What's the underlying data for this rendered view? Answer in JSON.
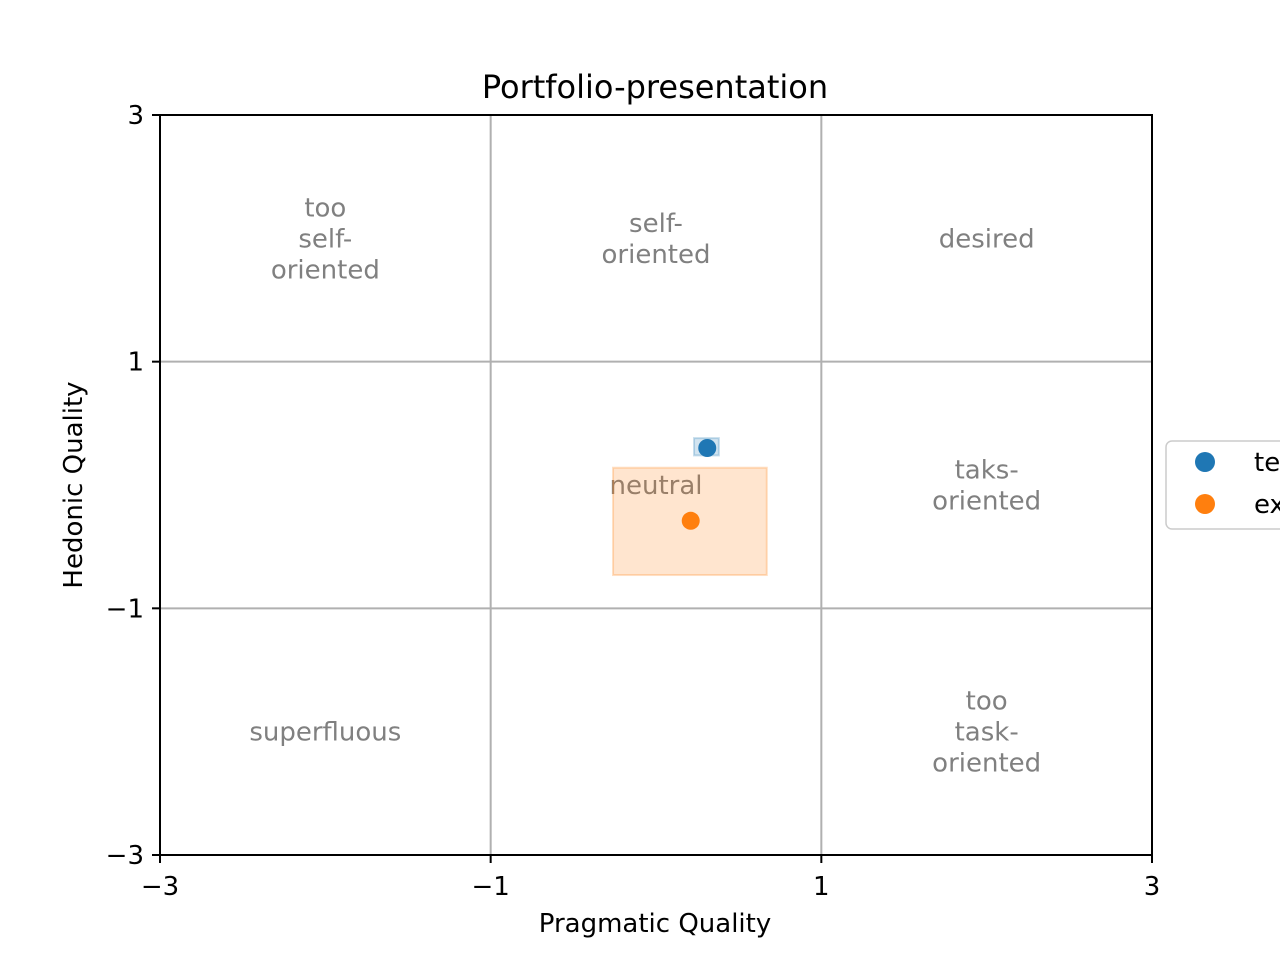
{
  "chart_data": {
    "type": "scatter",
    "title": "Portfolio-presentation",
    "xlabel": "Pragmatic Quality",
    "ylabel": "Hedonic Quality",
    "xlim": [
      -3,
      3
    ],
    "ylim": [
      -3,
      3
    ],
    "xticks": [
      -3,
      -1,
      1,
      3
    ],
    "yticks": [
      -3,
      -1,
      1,
      3
    ],
    "xtick_labels": [
      "−3",
      "−1",
      "1",
      "3"
    ],
    "ytick_labels": [
      "−3",
      "−1",
      "1",
      "3"
    ],
    "grid": true,
    "legend_position": "right (outside, cut off)",
    "regions": [
      {
        "lines": [
          "too",
          "self-",
          "oriented"
        ],
        "x": -2,
        "y": 2
      },
      {
        "lines": [
          "self-",
          "oriented"
        ],
        "x": 0,
        "y": 2
      },
      {
        "lines": [
          "desired"
        ],
        "x": 2,
        "y": 2
      },
      {
        "lines": [
          "neutral"
        ],
        "x": 0,
        "y": 0
      },
      {
        "lines": [
          "taks-",
          "oriented"
        ],
        "x": 2,
        "y": 0
      },
      {
        "lines": [
          "superfluous"
        ],
        "x": -2,
        "y": -2
      },
      {
        "lines": [
          "too",
          "task-",
          "oriented"
        ],
        "x": 2,
        "y": -2
      }
    ],
    "series": [
      {
        "name": "te",
        "color": "#1f77b4",
        "x": [
          0.31
        ],
        "y": 0.3,
        "y_values": [
          0.3
        ],
        "conf_x": [
          0.23,
          0.38
        ],
        "conf_y": [
          0.24,
          0.38
        ]
      },
      {
        "name": "ex",
        "color": "#ff7f0e",
        "x": [
          0.21
        ],
        "y_values": [
          -0.29
        ],
        "conf_x": [
          -0.26,
          0.67
        ],
        "conf_y": [
          -0.73,
          0.14
        ]
      }
    ]
  }
}
